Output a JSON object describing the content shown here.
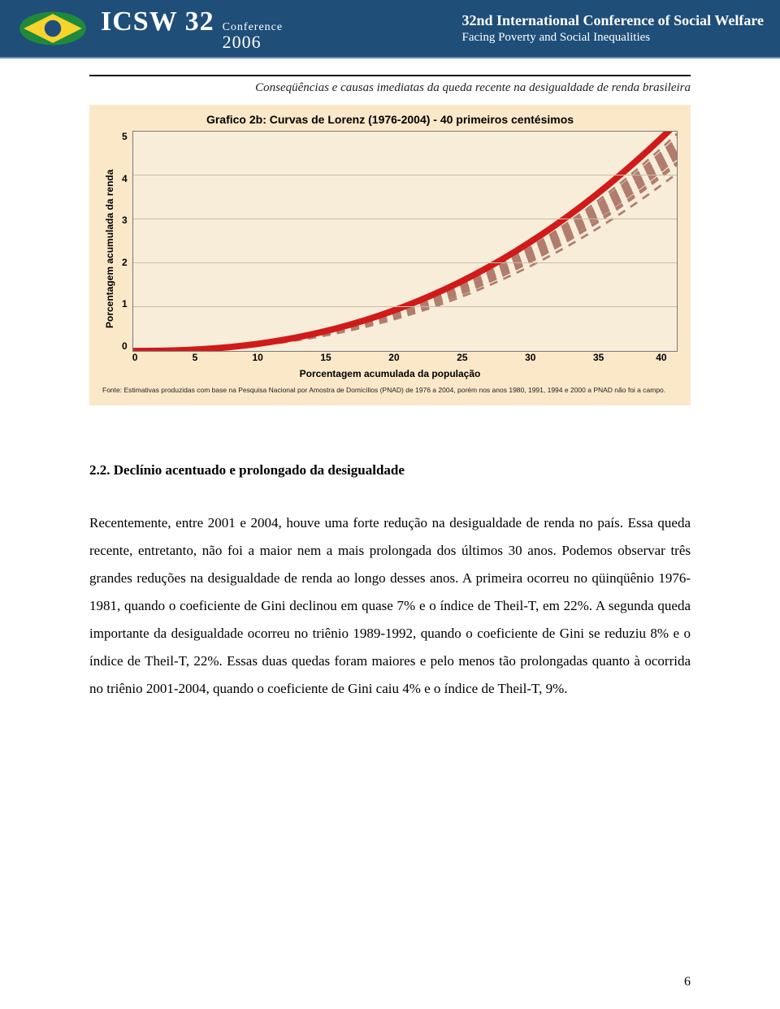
{
  "banner": {
    "brand": "ICSW 32",
    "conf_word": "Conference",
    "year": "2006",
    "line1": "32nd International Conference of Social Welfare",
    "line2": "Facing Poverty and Social Inequalities",
    "bg_color": "#1f4e79",
    "rule_color": "#6a8bb7",
    "flag_colors": {
      "green": "#1f8a3b",
      "yellow": "#f6d32d",
      "blue": "#1f4e79"
    }
  },
  "running_title": "Conseqüências e causas imediatas da queda recente na desigualdade de renda brasileira",
  "chart": {
    "type": "line",
    "title": "Grafico 2b: Curvas de Lorenz (1976-2004) - 40 primeiros centésimos",
    "title_font_family": "Arial",
    "title_fontsize": 14,
    "title_fontweight": "bold",
    "card_bg": "#fbe8c9",
    "plot_bg": "#f7edd9",
    "plot_border_color": "#7a7a7a",
    "grid_color": "#c9bfa3",
    "xlabel": "Porcentagem acumulada da população",
    "ylabel": "Porcentagem acumulada da renda",
    "axis_label_fontsize": 12,
    "axis_label_fontweight": "bold",
    "axis_label_font_family": "Arial",
    "tick_fontsize": 12,
    "tick_fontweight": "bold",
    "xlim": [
      0,
      40
    ],
    "ylim": [
      0,
      5
    ],
    "xtick_step": 5,
    "ytick_step": 1,
    "xticks": [
      0,
      5,
      10,
      15,
      20,
      25,
      30,
      35,
      40
    ],
    "yticks": [
      5,
      4,
      3,
      2,
      1,
      0
    ],
    "highlight_series": "2004",
    "highlight_style": {
      "color": "#d11a1a",
      "width": 2.6,
      "dash": "none"
    },
    "other_style": {
      "color": "#b07d6e",
      "width": 0.9,
      "dash": "4 3"
    },
    "y_at_x40": {
      "1976": 4.45,
      "1977": 4.3,
      "1978": 4.4,
      "1979": 4.5,
      "1981": 4.7,
      "1982": 4.65,
      "1983": 4.55,
      "1984": 4.75,
      "1985": 4.6,
      "1986": 4.8,
      "1987": 4.55,
      "1988": 4.25,
      "1989": 4.05,
      "1990": 4.3,
      "1992": 4.85,
      "1993": 4.4,
      "1995": 4.55,
      "1996": 4.6,
      "1997": 4.6,
      "1998": 4.65,
      "1999": 4.75,
      "2001": 4.75,
      "2002": 4.85,
      "2003": 4.95,
      "2004": 5.2
    },
    "curve_shape_exponent": 2.35,
    "source": "Fonte: Estimativas produzidas com base na Pesquisa Nacional por Amostra de Domicílios (PNAD) de 1976 a 2004, porém nos anos 1980, 1991, 1994 e 2000 a PNAD não foi a campo.",
    "source_fontsize": 8.5
  },
  "section_heading": "2.2. Declínio acentuado e prolongado da desigualdade",
  "paragraph": "Recentemente, entre 2001 e 2004, houve uma forte redução na desigualdade de renda no país. Essa queda recente, entretanto, não foi a maior nem a mais prolongada dos últimos 30 anos. Podemos observar três grandes reduções na desigualdade de renda ao longo desses anos. A primeira ocorreu no qüinqüênio 1976-1981, quando o coeficiente de Gini declinou em quase 7% e o índice de Theil-T, em 22%. A segunda queda importante da desigualdade ocorreu no triênio 1989-1992, quando o coeficiente de Gini se reduziu 8% e o índice de Theil-T, 22%. Essas duas quedas foram maiores e pelo menos tão prolongadas quanto à ocorrida no triênio 2001-2004, quando o coeficiente de Gini caiu 4% e o índice de Theil-T, 9%.",
  "body_fontsize": 17,
  "body_line_height": 2.0,
  "page_number": "6"
}
